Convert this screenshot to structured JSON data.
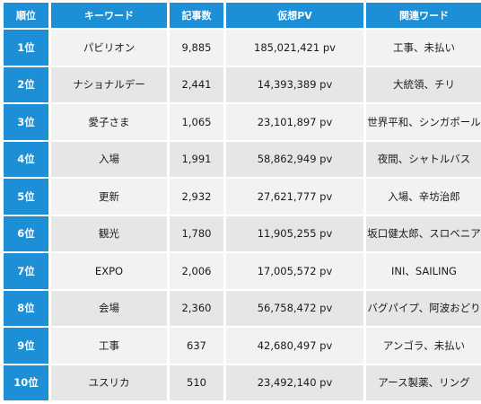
{
  "table": {
    "headers": [
      "順位",
      "キーワード",
      "記事数",
      "仮想PV",
      "関連ワード"
    ],
    "rows": [
      {
        "rank": "1位",
        "keyword": "パビリオン",
        "articles": "9,885",
        "pv": "185,021,421 pv",
        "related": "工事、未払い"
      },
      {
        "rank": "2位",
        "keyword": "ナショナルデー",
        "articles": "2,441",
        "pv": "14,393,389 pv",
        "related": "大統領、チリ"
      },
      {
        "rank": "3位",
        "keyword": "愛子さま",
        "articles": "1,065",
        "pv": "23,101,897 pv",
        "related": "世界平和、シンガポール"
      },
      {
        "rank": "4位",
        "keyword": "入場",
        "articles": "1,991",
        "pv": "58,862,949 pv",
        "related": "夜間、シャトルバス"
      },
      {
        "rank": "5位",
        "keyword": "更新",
        "articles": "2,932",
        "pv": "27,621,777 pv",
        "related": "入場、辛坊治郎"
      },
      {
        "rank": "6位",
        "keyword": "観光",
        "articles": "1,780",
        "pv": "11,905,255 pv",
        "related": "坂口健太郎、スロベニア"
      },
      {
        "rank": "7位",
        "keyword": "EXPO",
        "articles": "2,006",
        "pv": "17,005,572 pv",
        "related": "INI、SAILING"
      },
      {
        "rank": "8位",
        "keyword": "会場",
        "articles": "2,360",
        "pv": "56,758,472 pv",
        "related": "バグパイプ、阿波おどり"
      },
      {
        "rank": "9位",
        "keyword": "工事",
        "articles": "637",
        "pv": "42,680,497 pv",
        "related": "アンゴラ、未払い"
      },
      {
        "rank": "10位",
        "keyword": "ユスリカ",
        "articles": "510",
        "pv": "23,492,140 pv",
        "related": "アース製薬、リング"
      }
    ]
  },
  "colors": {
    "header_bg": "#1d8fd6",
    "row_odd_bg": "#f2f2f2",
    "row_even_bg": "#e6e6e6"
  }
}
